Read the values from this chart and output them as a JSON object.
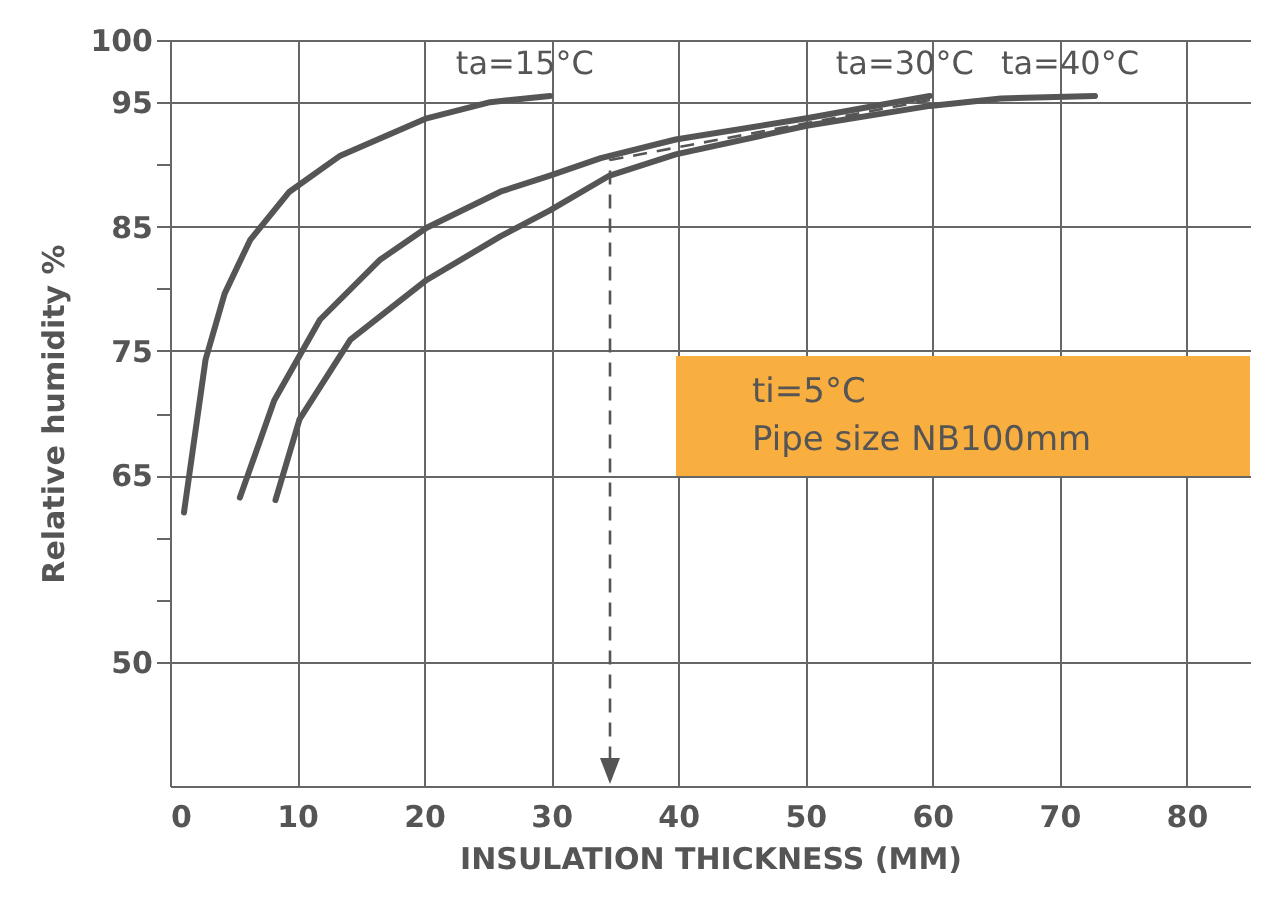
{
  "chart_data": {
    "type": "line",
    "xlabel": "INSULATION THICKNESS (MM)",
    "ylabel": "Relative humidity %",
    "xlim": [
      0,
      85
    ],
    "xticks": [
      0,
      10,
      20,
      30,
      40,
      50,
      60,
      70,
      80
    ],
    "ylim": [
      40,
      100
    ],
    "yticks": [
      50,
      {
        "value": 55,
        "label": null
      },
      {
        "value": 60,
        "label": null
      },
      65,
      {
        "value": 70,
        "label": null
      },
      75,
      {
        "value": 80,
        "label": null
      },
      85,
      {
        "value": 90,
        "label": null
      },
      95,
      100
    ],
    "grid": true,
    "series": [
      {
        "name": "ta=15°C",
        "color": "#555555",
        "x": [
          1.1,
          1.9,
          2.8,
          4.3,
          6.3,
          9.4,
          13.4,
          20.2,
          25.2,
          29.9
        ],
        "values": [
          62,
          67.8,
          74.3,
          79.6,
          83.9,
          87.8,
          90.7,
          93.7,
          95,
          95.5
        ]
      },
      {
        "name": "ta=30°C",
        "color": "#555555",
        "x": [
          5.5,
          8.2,
          11.8,
          16.5,
          20.2,
          26,
          29.9,
          33.9,
          39.8,
          50.1,
          59.8
        ],
        "values": [
          63.2,
          71,
          77.5,
          82.3,
          84.9,
          87.8,
          89.1,
          90.5,
          92,
          93.7,
          95.5
        ]
      },
      {
        "name": "ta=40°C",
        "color": "#555555",
        "x": [
          8.3,
          10.2,
          14.2,
          20.2,
          26,
          29.9,
          34.6,
          39.8,
          50.1,
          59.8,
          65.4,
          72.8
        ],
        "values": [
          63,
          69.5,
          75.9,
          80.7,
          84.2,
          86.3,
          89.1,
          90.8,
          93.1,
          94.7,
          95.3,
          95.5
        ]
      }
    ],
    "annotations": [
      "ti=5°C",
      "Pipe size NB100mm"
    ]
  }
}
